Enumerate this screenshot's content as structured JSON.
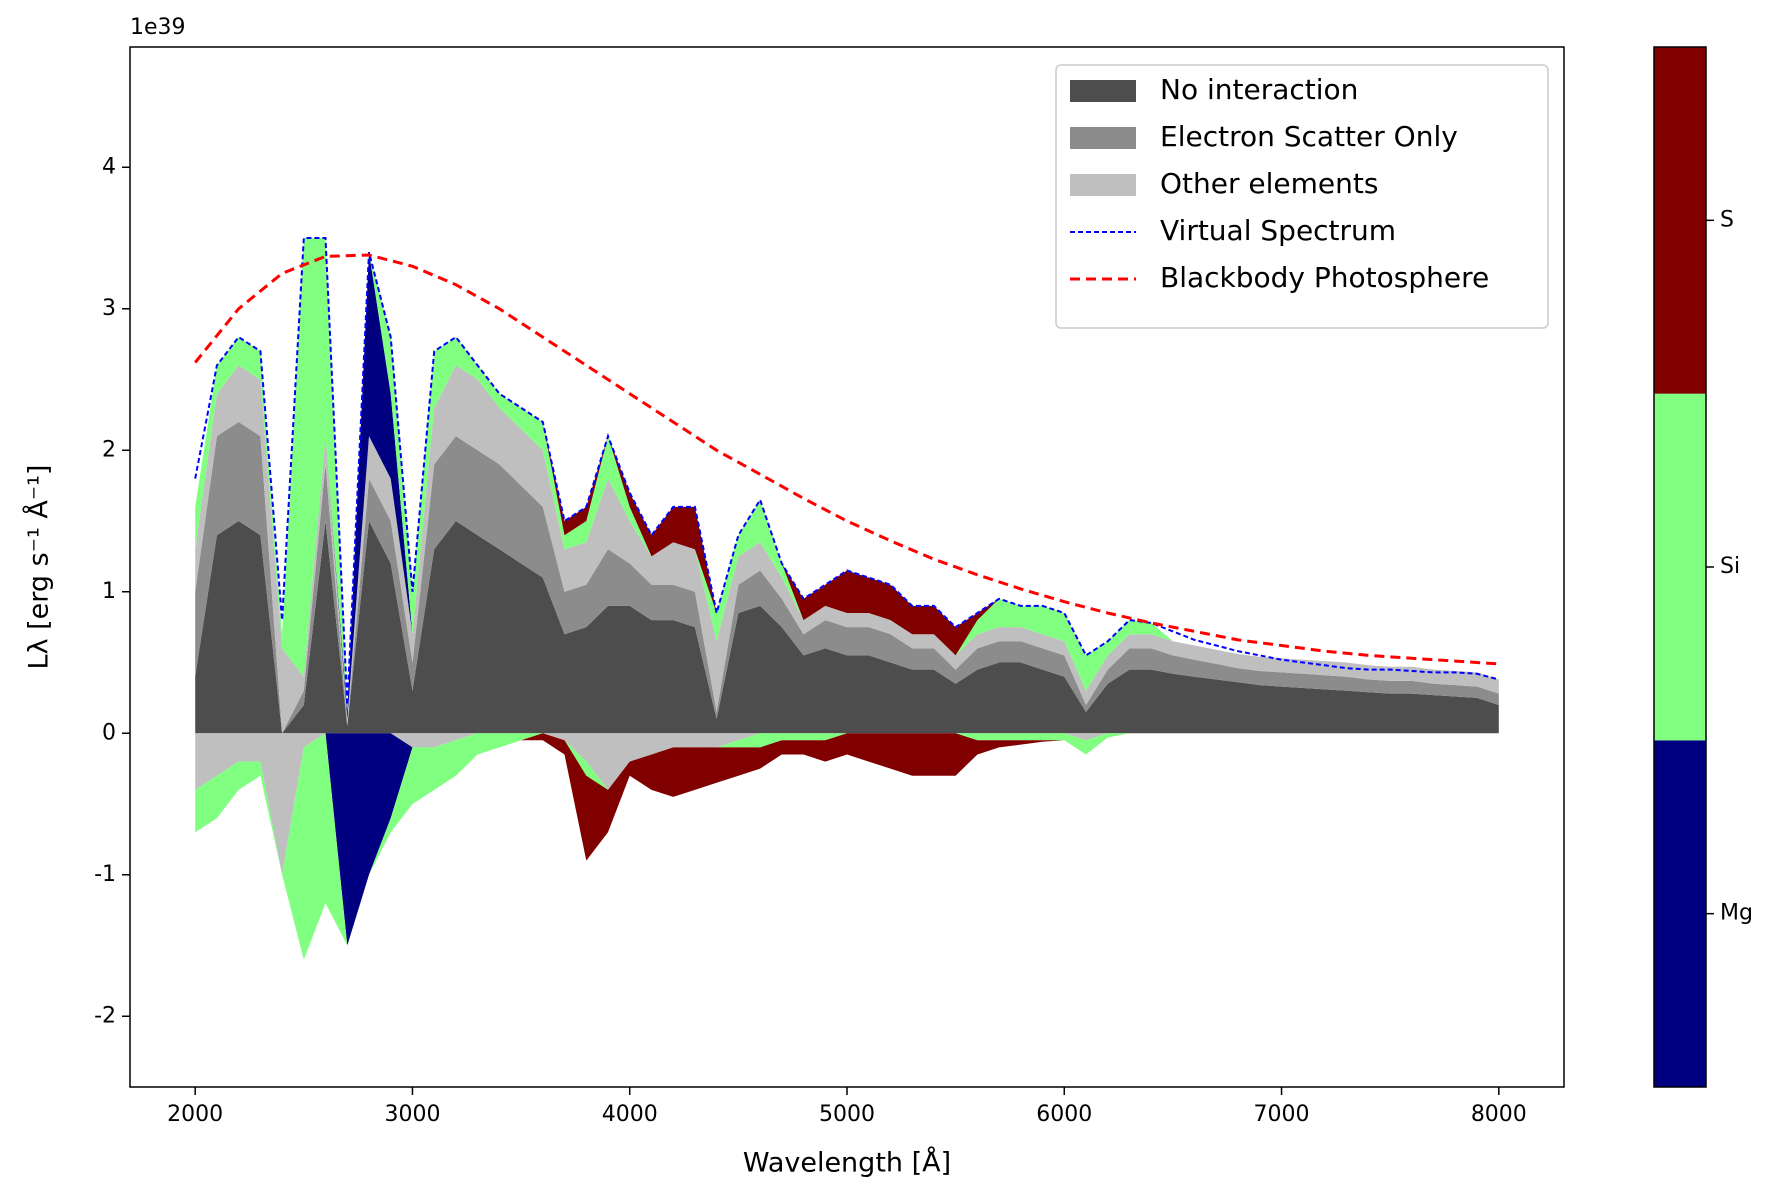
{
  "chart_data": {
    "type": "area",
    "offset_label": "1e39",
    "xlabel": "Wavelength [Å]",
    "ylabel": "Lλ [erg s⁻¹ Å⁻¹]",
    "xlim": [
      1700,
      8300
    ],
    "ylim": [
      -2.5,
      4.85
    ],
    "xticks": [
      2000,
      3000,
      4000,
      5000,
      6000,
      7000,
      8000
    ],
    "yticks": [
      -2,
      -1,
      0,
      1,
      2,
      3,
      4
    ],
    "grid": false,
    "legend_loc": "upper right",
    "x": [
      2000,
      2100,
      2200,
      2300,
      2400,
      2500,
      2600,
      2700,
      2800,
      2900,
      3000,
      3100,
      3200,
      3300,
      3400,
      3500,
      3600,
      3700,
      3800,
      3900,
      4000,
      4100,
      4200,
      4300,
      4400,
      4500,
      4600,
      4700,
      4800,
      4900,
      5000,
      5100,
      5200,
      5300,
      5400,
      5500,
      5600,
      5700,
      5800,
      5900,
      6000,
      6100,
      6200,
      6300,
      6400,
      6500,
      6600,
      6700,
      6800,
      6900,
      7000,
      7100,
      7200,
      7300,
      7400,
      7500,
      7600,
      7700,
      7800,
      7900,
      8000
    ],
    "series": [
      {
        "name": "No interaction",
        "type": "stacked_area",
        "color": "#4d4d4d",
        "values": [
          0.4,
          1.4,
          1.5,
          1.4,
          0,
          0.2,
          1.5,
          0.05,
          1.5,
          1.2,
          0.3,
          1.3,
          1.5,
          1.4,
          1.3,
          1.2,
          1.1,
          0.7,
          0.75,
          0.9,
          0.9,
          0.8,
          0.8,
          0.75,
          0.1,
          0.85,
          0.9,
          0.75,
          0.55,
          0.6,
          0.55,
          0.55,
          0.5,
          0.45,
          0.45,
          0.35,
          0.45,
          0.5,
          0.5,
          0.45,
          0.4,
          0.15,
          0.35,
          0.45,
          0.45,
          0.42,
          0.4,
          0.38,
          0.36,
          0.34,
          0.33,
          0.32,
          0.31,
          0.3,
          0.29,
          0.28,
          0.28,
          0.27,
          0.26,
          0.25,
          0.2
        ]
      },
      {
        "name": "Electron Scatter Only",
        "type": "stacked_area",
        "color": "#8c8c8c",
        "values": [
          0.6,
          0.7,
          0.7,
          0.7,
          0,
          0.1,
          0.4,
          0,
          0.3,
          0.3,
          0.2,
          0.6,
          0.6,
          0.6,
          0.6,
          0.55,
          0.5,
          0.3,
          0.3,
          0.4,
          0.3,
          0.25,
          0.25,
          0.25,
          0.05,
          0.2,
          0.25,
          0.2,
          0.15,
          0.2,
          0.2,
          0.2,
          0.2,
          0.15,
          0.15,
          0.1,
          0.15,
          0.15,
          0.15,
          0.15,
          0.15,
          0.05,
          0.1,
          0.15,
          0.15,
          0.13,
          0.12,
          0.11,
          0.1,
          0.1,
          0.1,
          0.1,
          0.1,
          0.1,
          0.09,
          0.09,
          0.09,
          0.08,
          0.08,
          0.08,
          0.08
        ]
      },
      {
        "name": "Other elements",
        "type": "stacked_area",
        "color": "#bfbfbf",
        "values": [
          0.3,
          0.3,
          0.4,
          0.4,
          0.6,
          0.1,
          0.2,
          0.05,
          0.3,
          0.3,
          0.2,
          0.4,
          0.5,
          0.5,
          0.4,
          0.4,
          0.4,
          0.3,
          0.3,
          0.5,
          0.3,
          0.2,
          0.3,
          0.3,
          0.5,
          0.2,
          0.2,
          0.15,
          0.1,
          0.1,
          0.1,
          0.1,
          0.1,
          0.1,
          0.1,
          0.1,
          0.1,
          0.1,
          0.1,
          0.1,
          0.1,
          0.1,
          0.1,
          0.1,
          0.1,
          0.1,
          0.1,
          0.1,
          0.1,
          0.1,
          0.1,
          0.1,
          0.1,
          0.1,
          0.1,
          0.1,
          0.1,
          0.1,
          0.1,
          0.1,
          0.1
        ],
        "absorption": [
          -0.4,
          -0.3,
          -0.2,
          -0.2,
          -1,
          -0.1,
          0,
          0,
          0,
          0,
          -0.1,
          -0.1,
          -0.05,
          0,
          0,
          0,
          0,
          -0.05,
          -0.2,
          -0.4,
          -0.2,
          -0.15,
          -0.1,
          -0.1,
          -0.1,
          -0.05,
          0,
          0,
          0,
          0,
          0,
          0,
          0,
          0,
          0,
          0,
          0,
          0,
          0,
          0,
          0,
          -0.05,
          0,
          0,
          0,
          0,
          0,
          0,
          0,
          0,
          0,
          0,
          0,
          0,
          0,
          0,
          0,
          0,
          0,
          0,
          0
        ]
      },
      {
        "name": "Virtual Spectrum",
        "type": "line",
        "color": "#0000ff",
        "values": [
          1.8,
          2.6,
          2.8,
          2.7,
          0.8,
          3.5,
          3.5,
          0.2,
          3.4,
          2.8,
          1.0,
          2.7,
          2.8,
          2.6,
          2.4,
          2.3,
          2.2,
          1.5,
          1.6,
          2.1,
          1.7,
          1.4,
          1.6,
          1.6,
          0.85,
          1.4,
          1.65,
          1.2,
          0.95,
          1.05,
          1.15,
          1.1,
          1.05,
          0.9,
          0.9,
          0.75,
          0.85,
          0.95,
          0.9,
          0.9,
          0.85,
          0.55,
          0.65,
          0.8,
          0.78,
          0.72,
          0.66,
          0.62,
          0.58,
          0.55,
          0.52,
          0.5,
          0.48,
          0.46,
          0.45,
          0.45,
          0.44,
          0.43,
          0.43,
          0.42,
          0.38
        ]
      },
      {
        "name": "Blackbody Photosphere",
        "type": "line",
        "color": "#ff0000",
        "x": [
          2000,
          2200,
          2400,
          2600,
          2800,
          3000,
          3200,
          3400,
          3600,
          3800,
          4000,
          4200,
          4400,
          4600,
          4800,
          5000,
          5200,
          5400,
          5600,
          5800,
          6000,
          6200,
          6400,
          6600,
          6800,
          7000,
          7200,
          7400,
          7600,
          7800,
          8000
        ],
        "values": [
          2.62,
          3.0,
          3.25,
          3.37,
          3.38,
          3.3,
          3.17,
          3.0,
          2.8,
          2.6,
          2.4,
          2.2,
          2.0,
          1.83,
          1.66,
          1.5,
          1.36,
          1.23,
          1.12,
          1.02,
          0.93,
          0.85,
          0.78,
          0.72,
          0.66,
          0.62,
          0.58,
          0.55,
          0.53,
          0.51,
          0.49
        ]
      }
    ],
    "elements": [
      {
        "name": "Mg",
        "color": "#000080",
        "emission": [
          0,
          0,
          0,
          0,
          0,
          0,
          0,
          0.05,
          1.3,
          0.6,
          0,
          0,
          0,
          0,
          0,
          0,
          0,
          0,
          0,
          0,
          0,
          0,
          0,
          0,
          0,
          0,
          0,
          0,
          0,
          0,
          0,
          0,
          0,
          0,
          0,
          0,
          0,
          0,
          0,
          0,
          0,
          0,
          0,
          0,
          0,
          0,
          0,
          0,
          0,
          0,
          0,
          0,
          0,
          0,
          0,
          0,
          0,
          0,
          0,
          0,
          0
        ],
        "absorption": [
          0,
          0,
          0,
          0,
          0,
          0,
          0,
          -1.5,
          -1,
          -0.6,
          0,
          0,
          0,
          0,
          0,
          0,
          0,
          0,
          0,
          0,
          0,
          0,
          0,
          0,
          0,
          0,
          0,
          0,
          0,
          0,
          0,
          0,
          0,
          0,
          0,
          0,
          0,
          0,
          0,
          0,
          0,
          0,
          0,
          0,
          0,
          0,
          0,
          0,
          0,
          0,
          0,
          0,
          0,
          0,
          0,
          0,
          0,
          0,
          0,
          0,
          0
        ]
      },
      {
        "name": "Si",
        "color": "#80ff80",
        "emission": [
          0.3,
          0.2,
          0.2,
          0.2,
          0.1,
          3.1,
          1.4,
          0,
          0,
          0.4,
          0.3,
          0.4,
          0.2,
          0.1,
          0.1,
          0.15,
          0.2,
          0.1,
          0.15,
          0.3,
          0.1,
          0,
          0,
          0,
          0.2,
          0.15,
          0.3,
          0.1,
          0,
          0,
          0,
          0,
          0,
          0,
          0,
          0,
          0.1,
          0.2,
          0.15,
          0.2,
          0.2,
          0.25,
          0.1,
          0.1,
          0.08,
          0,
          0,
          0,
          0,
          0,
          0,
          0,
          0,
          0,
          0,
          0,
          0,
          0,
          0,
          0,
          0
        ],
        "absorption": [
          -0.3,
          -0.3,
          -0.2,
          -0.1,
          0,
          -1.5,
          -1.2,
          0,
          0,
          -0.1,
          -0.4,
          -0.3,
          -0.25,
          -0.15,
          -0.1,
          -0.05,
          0,
          0,
          -0.1,
          0,
          0,
          0,
          0,
          0,
          0,
          -0.05,
          -0.1,
          -0.05,
          -0.05,
          -0.05,
          0,
          0,
          0,
          0,
          0,
          0,
          -0.05,
          -0.05,
          -0.05,
          -0.05,
          -0.05,
          -0.1,
          -0.03,
          0,
          0,
          0,
          0,
          0,
          0,
          0,
          0,
          0,
          0,
          0,
          0,
          0,
          0,
          0,
          0,
          0,
          0
        ]
      },
      {
        "name": "S",
        "color": "#800000",
        "emission": [
          0,
          0,
          0,
          0,
          0,
          0,
          0,
          0,
          0,
          0,
          0,
          0,
          0,
          0,
          0,
          0,
          0,
          0.1,
          0.1,
          0,
          0.1,
          0.15,
          0.25,
          0.3,
          0,
          0,
          0,
          0,
          0.15,
          0.15,
          0.3,
          0.25,
          0.25,
          0.2,
          0.2,
          0.2,
          0.05,
          0,
          0,
          0,
          0,
          0,
          0,
          0,
          0,
          0,
          0,
          0,
          0,
          0,
          0,
          0,
          0,
          0,
          0,
          0,
          0,
          0,
          0,
          0,
          0
        ],
        "absorption": [
          0,
          0,
          0,
          0,
          0,
          0,
          0,
          0,
          0,
          0,
          0,
          0,
          0,
          0,
          0,
          0,
          -0.05,
          -0.1,
          -0.6,
          -0.3,
          -0.1,
          -0.25,
          -0.35,
          -0.3,
          -0.25,
          -0.2,
          -0.15,
          -0.1,
          -0.1,
          -0.15,
          -0.15,
          -0.2,
          -0.25,
          -0.3,
          -0.3,
          -0.3,
          -0.1,
          -0.05,
          -0.03,
          -0.01,
          0,
          0,
          0,
          0,
          0,
          0,
          0,
          0,
          0,
          0,
          0,
          0,
          0,
          0,
          0,
          0,
          0,
          0,
          0,
          0,
          0
        ]
      }
    ]
  }
}
